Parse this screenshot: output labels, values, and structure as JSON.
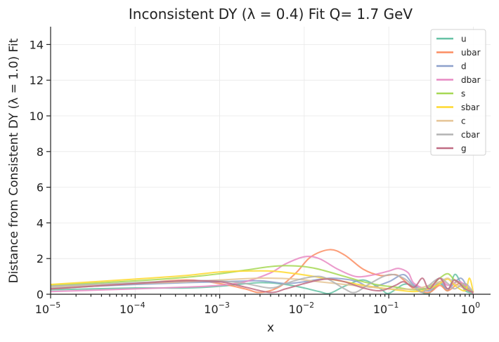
{
  "chart_data": {
    "type": "line",
    "title": "Inconsistent DY (λ = 0.4) Fit Q= 1.7 GeV",
    "xlabel": "x",
    "ylabel": "Distance from Consistent DY (λ = 1.0) Fit",
    "xscale": "log",
    "xlim": [
      1e-05,
      1.6
    ],
    "ylim": [
      0,
      15
    ],
    "grid": true,
    "legend_position": "top-right",
    "x_ticks": [
      {
        "value": 1e-05,
        "base": "10",
        "exp": "−5"
      },
      {
        "value": 0.0001,
        "base": "10",
        "exp": "−4"
      },
      {
        "value": 0.001,
        "base": "10",
        "exp": "−3"
      },
      {
        "value": 0.01,
        "base": "10",
        "exp": "−2"
      },
      {
        "value": 0.1,
        "base": "10",
        "exp": "−1"
      },
      {
        "value": 1,
        "base": "10",
        "exp": "0"
      }
    ],
    "y_ticks": [
      {
        "value": 0,
        "label": "0"
      },
      {
        "value": 2,
        "label": "2"
      },
      {
        "value": 4,
        "label": "4"
      },
      {
        "value": 6,
        "label": "6"
      },
      {
        "value": 8,
        "label": "8"
      },
      {
        "value": 10,
        "label": "10"
      },
      {
        "value": 12,
        "label": "12"
      },
      {
        "value": 14,
        "label": "14"
      }
    ],
    "series": [
      {
        "name": "u",
        "color": "#66c2a5",
        "points": [
          [
            1e-05,
            0.25
          ],
          [
            0.0001,
            0.35
          ],
          [
            0.0004,
            0.35
          ],
          [
            0.001,
            0.45
          ],
          [
            0.003,
            0.65
          ],
          [
            0.006,
            0.55
          ],
          [
            0.01,
            0.35
          ],
          [
            0.015,
            0.15
          ],
          [
            0.02,
            0.05
          ],
          [
            0.03,
            0.45
          ],
          [
            0.05,
            0.8
          ],
          [
            0.08,
            0.3
          ],
          [
            0.1,
            0.05
          ],
          [
            0.15,
            0.55
          ],
          [
            0.2,
            0.45
          ],
          [
            0.25,
            0.1
          ],
          [
            0.3,
            0.05
          ],
          [
            0.4,
            0.6
          ],
          [
            0.5,
            0.2
          ],
          [
            0.6,
            1.1
          ],
          [
            0.7,
            0.7
          ],
          [
            0.8,
            0.2
          ],
          [
            1,
            0.05
          ]
        ]
      },
      {
        "name": "ubar",
        "color": "#fc8d62",
        "points": [
          [
            1e-05,
            0.3
          ],
          [
            0.0001,
            0.6
          ],
          [
            0.0004,
            0.8
          ],
          [
            0.001,
            0.6
          ],
          [
            0.002,
            0.3
          ],
          [
            0.003,
            0.1
          ],
          [
            0.005,
            0.4
          ],
          [
            0.008,
            1.2
          ],
          [
            0.012,
            2.1
          ],
          [
            0.02,
            2.5
          ],
          [
            0.03,
            2.2
          ],
          [
            0.05,
            1.4
          ],
          [
            0.08,
            1.05
          ],
          [
            0.12,
            1.1
          ],
          [
            0.15,
            0.8
          ],
          [
            0.2,
            0.3
          ],
          [
            0.3,
            0.1
          ],
          [
            0.4,
            0.5
          ],
          [
            0.5,
            0.2
          ],
          [
            0.7,
            0.6
          ],
          [
            1,
            0.05
          ]
        ]
      },
      {
        "name": "d",
        "color": "#8da0cb",
        "points": [
          [
            1e-05,
            0.35
          ],
          [
            0.0001,
            0.55
          ],
          [
            0.0004,
            0.65
          ],
          [
            0.001,
            0.7
          ],
          [
            0.003,
            0.75
          ],
          [
            0.006,
            0.6
          ],
          [
            0.01,
            0.7
          ],
          [
            0.02,
            0.9
          ],
          [
            0.04,
            0.75
          ],
          [
            0.06,
            0.4
          ],
          [
            0.1,
            0.7
          ],
          [
            0.15,
            1.1
          ],
          [
            0.2,
            0.5
          ],
          [
            0.3,
            0.2
          ],
          [
            0.4,
            0.7
          ],
          [
            0.5,
            0.3
          ],
          [
            0.7,
            0.9
          ],
          [
            0.85,
            0.4
          ],
          [
            1,
            0.1
          ]
        ]
      },
      {
        "name": "dbar",
        "color": "#e78ac3",
        "points": [
          [
            1e-05,
            0.15
          ],
          [
            0.0001,
            0.3
          ],
          [
            0.0004,
            0.4
          ],
          [
            0.001,
            0.5
          ],
          [
            0.002,
            0.7
          ],
          [
            0.004,
            1.2
          ],
          [
            0.006,
            1.7
          ],
          [
            0.01,
            2.1
          ],
          [
            0.015,
            2.0
          ],
          [
            0.025,
            1.4
          ],
          [
            0.04,
            1.0
          ],
          [
            0.06,
            1.05
          ],
          [
            0.1,
            1.3
          ],
          [
            0.13,
            1.45
          ],
          [
            0.17,
            1.2
          ],
          [
            0.2,
            0.6
          ],
          [
            0.3,
            0.3
          ],
          [
            0.4,
            0.9
          ],
          [
            0.5,
            0.5
          ],
          [
            0.7,
            0.7
          ],
          [
            1,
            0.05
          ]
        ]
      },
      {
        "name": "s",
        "color": "#a6d854",
        "points": [
          [
            1e-05,
            0.5
          ],
          [
            0.0001,
            0.75
          ],
          [
            0.0004,
            0.95
          ],
          [
            0.001,
            1.15
          ],
          [
            0.002,
            1.35
          ],
          [
            0.004,
            1.55
          ],
          [
            0.006,
            1.6
          ],
          [
            0.01,
            1.55
          ],
          [
            0.015,
            1.4
          ],
          [
            0.03,
            1.0
          ],
          [
            0.05,
            0.7
          ],
          [
            0.08,
            0.5
          ],
          [
            0.12,
            0.4
          ],
          [
            0.2,
            0.25
          ],
          [
            0.3,
            0.4
          ],
          [
            0.4,
            0.9
          ],
          [
            0.5,
            1.15
          ],
          [
            0.6,
            0.8
          ],
          [
            0.8,
            0.4
          ],
          [
            1,
            0.1
          ]
        ]
      },
      {
        "name": "sbar",
        "color": "#ffd92f",
        "points": [
          [
            1e-05,
            0.55
          ],
          [
            0.0001,
            0.85
          ],
          [
            0.0004,
            1.05
          ],
          [
            0.001,
            1.25
          ],
          [
            0.002,
            1.3
          ],
          [
            0.004,
            1.3
          ],
          [
            0.008,
            1.15
          ],
          [
            0.015,
            0.95
          ],
          [
            0.03,
            0.7
          ],
          [
            0.05,
            0.5
          ],
          [
            0.1,
            0.3
          ],
          [
            0.2,
            0.15
          ],
          [
            0.3,
            0.3
          ],
          [
            0.4,
            0.6
          ],
          [
            0.5,
            0.85
          ],
          [
            0.6,
            0.5
          ],
          [
            0.8,
            0.2
          ],
          [
            0.9,
            0.9
          ],
          [
            1,
            0.1
          ]
        ]
      },
      {
        "name": "c",
        "color": "#e5c494",
        "points": [
          [
            1e-05,
            0.4
          ],
          [
            0.0001,
            0.6
          ],
          [
            0.0004,
            0.7
          ],
          [
            0.001,
            0.8
          ],
          [
            0.003,
            0.9
          ],
          [
            0.008,
            0.85
          ],
          [
            0.015,
            0.7
          ],
          [
            0.03,
            0.55
          ],
          [
            0.06,
            0.4
          ],
          [
            0.1,
            0.3
          ],
          [
            0.2,
            0.3
          ],
          [
            0.3,
            0.5
          ],
          [
            0.4,
            0.7
          ],
          [
            0.5,
            0.9
          ],
          [
            0.6,
            0.6
          ],
          [
            0.8,
            0.3
          ],
          [
            1,
            0.1
          ]
        ]
      },
      {
        "name": "cbar",
        "color": "#b3b3b3",
        "points": [
          [
            1e-05,
            0.45
          ],
          [
            0.0001,
            0.65
          ],
          [
            0.0004,
            0.75
          ],
          [
            0.001,
            0.75
          ],
          [
            0.002,
            0.6
          ],
          [
            0.004,
            0.35
          ],
          [
            0.006,
            0.6
          ],
          [
            0.01,
            0.9
          ],
          [
            0.015,
            1.0
          ],
          [
            0.02,
            0.8
          ],
          [
            0.03,
            0.3
          ],
          [
            0.04,
            0.1
          ],
          [
            0.06,
            0.6
          ],
          [
            0.1,
            1.1
          ],
          [
            0.15,
            0.9
          ],
          [
            0.2,
            0.4
          ],
          [
            0.25,
            0.1
          ],
          [
            0.3,
            0.5
          ],
          [
            0.4,
            0.9
          ],
          [
            0.5,
            0.6
          ],
          [
            0.6,
            0.3
          ],
          [
            0.8,
            0.6
          ],
          [
            1,
            0.1
          ]
        ]
      },
      {
        "name": "g",
        "color": "#c06c84",
        "points": [
          [
            1e-05,
            0.3
          ],
          [
            0.0001,
            0.6
          ],
          [
            0.0004,
            0.75
          ],
          [
            0.001,
            0.7
          ],
          [
            0.002,
            0.4
          ],
          [
            0.004,
            0.1
          ],
          [
            0.006,
            0.3
          ],
          [
            0.01,
            0.6
          ],
          [
            0.015,
            0.8
          ],
          [
            0.02,
            0.85
          ],
          [
            0.03,
            0.7
          ],
          [
            0.05,
            0.35
          ],
          [
            0.08,
            0.2
          ],
          [
            0.12,
            0.5
          ],
          [
            0.15,
            0.7
          ],
          [
            0.2,
            0.4
          ],
          [
            0.25,
            0.9
          ],
          [
            0.3,
            0.3
          ],
          [
            0.4,
            0.9
          ],
          [
            0.5,
            0.3
          ],
          [
            0.6,
            0.8
          ],
          [
            0.8,
            0.3
          ],
          [
            1,
            0.1
          ]
        ]
      }
    ]
  }
}
